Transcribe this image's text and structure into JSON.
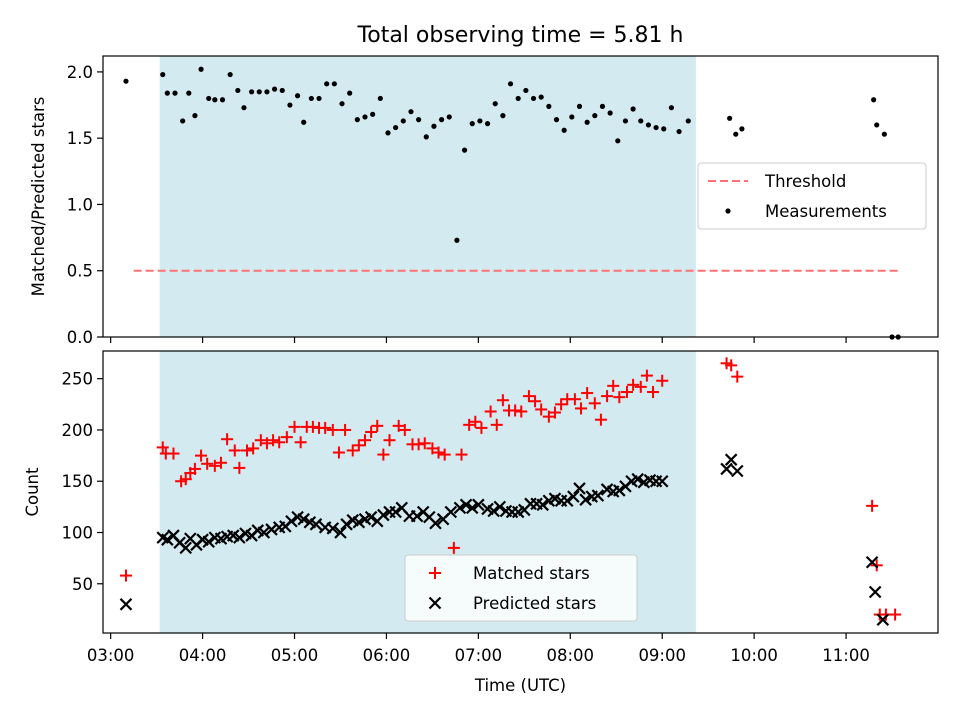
{
  "chart_data": [
    {
      "type": "scatter",
      "title": "Total observing time = 5.81 h",
      "ylabel": "Matched/Predicted stars",
      "xlabel": "",
      "ylim": [
        0,
        2.12
      ],
      "yticks": [
        0.0,
        0.5,
        1.0,
        1.5,
        2.0
      ],
      "ytick_labels": [
        "0.0",
        "0.5",
        "1.0",
        "1.5",
        "2.0"
      ],
      "observing_window": [
        "03:32",
        "09:22"
      ],
      "threshold": {
        "name": "Threshold",
        "value": 0.5,
        "x_range": [
          "03:15",
          "11:35"
        ],
        "color": "#ff7070",
        "style": "dashed"
      },
      "legend": {
        "entries": [
          "Threshold",
          "Measurements"
        ],
        "position": "center-right"
      },
      "series": [
        {
          "name": "Measurements",
          "color": "#000000",
          "points": [
            [
              "03:10",
              1.93
            ],
            [
              "03:34",
              1.98
            ],
            [
              "03:37",
              1.84
            ],
            [
              "03:42",
              1.84
            ],
            [
              "03:47",
              1.63
            ],
            [
              "03:51",
              1.84
            ],
            [
              "03:55",
              1.67
            ],
            [
              "03:59",
              2.02
            ],
            [
              "04:04",
              1.8
            ],
            [
              "04:08",
              1.79
            ],
            [
              "04:13",
              1.79
            ],
            [
              "04:18",
              1.98
            ],
            [
              "04:23",
              1.86
            ],
            [
              "04:27",
              1.73
            ],
            [
              "04:32",
              1.85
            ],
            [
              "04:37",
              1.85
            ],
            [
              "04:42",
              1.85
            ],
            [
              "04:47",
              1.87
            ],
            [
              "04:52",
              1.86
            ],
            [
              "04:57",
              1.75
            ],
            [
              "05:02",
              1.82
            ],
            [
              "05:06",
              1.62
            ],
            [
              "05:11",
              1.8
            ],
            [
              "05:16",
              1.8
            ],
            [
              "05:21",
              1.91
            ],
            [
              "05:26",
              1.91
            ],
            [
              "05:31",
              1.76
            ],
            [
              "05:36",
              1.84
            ],
            [
              "05:41",
              1.64
            ],
            [
              "05:46",
              1.66
            ],
            [
              "05:51",
              1.68
            ],
            [
              "05:56",
              1.8
            ],
            [
              "06:01",
              1.54
            ],
            [
              "06:06",
              1.58
            ],
            [
              "06:11",
              1.63
            ],
            [
              "06:16",
              1.7
            ],
            [
              "06:21",
              1.64
            ],
            [
              "06:26",
              1.51
            ],
            [
              "06:31",
              1.59
            ],
            [
              "06:36",
              1.64
            ],
            [
              "06:41",
              1.66
            ],
            [
              "06:46",
              0.73
            ],
            [
              "06:51",
              1.41
            ],
            [
              "06:56",
              1.61
            ],
            [
              "07:01",
              1.63
            ],
            [
              "07:06",
              1.61
            ],
            [
              "07:11",
              1.76
            ],
            [
              "07:16",
              1.67
            ],
            [
              "07:21",
              1.91
            ],
            [
              "07:26",
              1.8
            ],
            [
              "07:31",
              1.86
            ],
            [
              "07:36",
              1.8
            ],
            [
              "07:41",
              1.81
            ],
            [
              "07:46",
              1.74
            ],
            [
              "07:51",
              1.64
            ],
            [
              "07:56",
              1.56
            ],
            [
              "08:01",
              1.66
            ],
            [
              "08:06",
              1.74
            ],
            [
              "08:11",
              1.62
            ],
            [
              "08:16",
              1.67
            ],
            [
              "08:21",
              1.74
            ],
            [
              "08:26",
              1.69
            ],
            [
              "08:31",
              1.48
            ],
            [
              "08:36",
              1.63
            ],
            [
              "08:41",
              1.72
            ],
            [
              "08:46",
              1.63
            ],
            [
              "08:51",
              1.6
            ],
            [
              "08:56",
              1.58
            ],
            [
              "09:01",
              1.57
            ],
            [
              "09:06",
              1.73
            ],
            [
              "09:11",
              1.55
            ],
            [
              "09:17",
              1.63
            ],
            [
              "09:44",
              1.65
            ],
            [
              "09:48",
              1.53
            ],
            [
              "09:52",
              1.57
            ],
            [
              "11:18",
              1.79
            ],
            [
              "11:20",
              1.6
            ],
            [
              "11:25",
              1.53
            ],
            [
              "11:30",
              0.0
            ],
            [
              "11:34",
              0.0
            ]
          ]
        }
      ]
    },
    {
      "type": "scatter",
      "title": "",
      "ylabel": "Count",
      "xlabel": "Time (UTC)",
      "ylim": [
        2,
        277
      ],
      "yticks": [
        50,
        100,
        150,
        200,
        250
      ],
      "ytick_labels": [
        "50",
        "100",
        "150",
        "200",
        "250"
      ],
      "xlim": [
        "02:55",
        "12:00"
      ],
      "xticks": [
        "03:00",
        "04:00",
        "05:00",
        "06:00",
        "07:00",
        "08:00",
        "09:00",
        "10:00",
        "11:00"
      ],
      "observing_window": [
        "03:32",
        "09:22"
      ],
      "legend": {
        "entries": [
          "Matched stars",
          "Predicted stars"
        ],
        "position": "lower-center"
      },
      "series": [
        {
          "name": "Matched stars",
          "color": "#ff0000",
          "marker": "plus",
          "points": [
            [
              "03:10",
              58
            ],
            [
              "03:34",
              183
            ],
            [
              "03:36",
              177
            ],
            [
              "03:41",
              177
            ],
            [
              "03:46",
              150
            ],
            [
              "03:49",
              152
            ],
            [
              "03:52",
              158
            ],
            [
              "03:55",
              162
            ],
            [
              "03:59",
              175
            ],
            [
              "04:03",
              167
            ],
            [
              "04:08",
              165
            ],
            [
              "04:12",
              168
            ],
            [
              "04:16",
              191
            ],
            [
              "04:21",
              180
            ],
            [
              "04:24",
              163
            ],
            [
              "04:29",
              180
            ],
            [
              "04:33",
              182
            ],
            [
              "04:38",
              190
            ],
            [
              "04:42",
              187
            ],
            [
              "04:46",
              190
            ],
            [
              "04:50",
              188
            ],
            [
              "04:55",
              193
            ],
            [
              "05:00",
              203
            ],
            [
              "05:04",
              188
            ],
            [
              "05:08",
              203
            ],
            [
              "05:12",
              203
            ],
            [
              "05:16",
              202
            ],
            [
              "05:20",
              202
            ],
            [
              "05:25",
              200
            ],
            [
              "05:29",
              178
            ],
            [
              "05:33",
              200
            ],
            [
              "05:38",
              180
            ],
            [
              "05:42",
              185
            ],
            [
              "05:46",
              190
            ],
            [
              "05:50",
              198
            ],
            [
              "05:54",
              204
            ],
            [
              "05:58",
              176
            ],
            [
              "06:02",
              190
            ],
            [
              "06:08",
              204
            ],
            [
              "06:12",
              200
            ],
            [
              "06:17",
              186
            ],
            [
              "06:21",
              186
            ],
            [
              "06:25",
              187
            ],
            [
              "06:30",
              182
            ],
            [
              "06:34",
              178
            ],
            [
              "06:38",
              176
            ],
            [
              "06:44",
              85
            ],
            [
              "06:49",
              176
            ],
            [
              "06:54",
              205
            ],
            [
              "06:58",
              208
            ],
            [
              "07:02",
              202
            ],
            [
              "07:08",
              218
            ],
            [
              "07:12",
              205
            ],
            [
              "07:16",
              229
            ],
            [
              "07:20",
              219
            ],
            [
              "07:24",
              219
            ],
            [
              "07:28",
              218
            ],
            [
              "07:33",
              233
            ],
            [
              "07:37",
              228
            ],
            [
              "07:41",
              220
            ],
            [
              "07:46",
              213
            ],
            [
              "07:50",
              217
            ],
            [
              "07:54",
              225
            ],
            [
              "07:58",
              230
            ],
            [
              "08:03",
              230
            ],
            [
              "08:07",
              221
            ],
            [
              "08:11",
              236
            ],
            [
              "08:16",
              226
            ],
            [
              "08:20",
              210
            ],
            [
              "08:24",
              233
            ],
            [
              "08:28",
              243
            ],
            [
              "08:32",
              232
            ],
            [
              "08:37",
              237
            ],
            [
              "08:41",
              244
            ],
            [
              "08:46",
              242
            ],
            [
              "08:50",
              253
            ],
            [
              "08:54",
              237
            ],
            [
              "09:00",
              248
            ],
            [
              "09:42",
              265
            ],
            [
              "09:45",
              263
            ],
            [
              "09:49",
              252
            ],
            [
              "11:17",
              126
            ],
            [
              "11:20",
              68
            ],
            [
              "11:22",
              20
            ],
            [
              "11:26",
              20
            ],
            [
              "11:32",
              20
            ]
          ]
        },
        {
          "name": "Predicted stars",
          "color": "#000000",
          "marker": "x",
          "points": [
            [
              "03:10",
              30
            ],
            [
              "03:34",
              95
            ],
            [
              "03:37",
              93
            ],
            [
              "03:41",
              97
            ],
            [
              "03:45",
              90
            ],
            [
              "03:49",
              85
            ],
            [
              "03:52",
              94
            ],
            [
              "03:56",
              88
            ],
            [
              "04:00",
              93
            ],
            [
              "04:04",
              91
            ],
            [
              "04:08",
              95
            ],
            [
              "04:12",
              94
            ],
            [
              "04:16",
              96
            ],
            [
              "04:20",
              97
            ],
            [
              "04:24",
              95
            ],
            [
              "04:28",
              99
            ],
            [
              "04:32",
              97
            ],
            [
              "04:36",
              102
            ],
            [
              "04:40",
              100
            ],
            [
              "04:45",
              103
            ],
            [
              "04:50",
              105
            ],
            [
              "04:54",
              106
            ],
            [
              "04:58",
              111
            ],
            [
              "05:02",
              115
            ],
            [
              "05:06",
              113
            ],
            [
              "05:10",
              110
            ],
            [
              "05:14",
              108
            ],
            [
              "05:20",
              105
            ],
            [
              "05:25",
              104
            ],
            [
              "05:30",
              100
            ],
            [
              "05:34",
              108
            ],
            [
              "05:38",
              112
            ],
            [
              "05:42",
              110
            ],
            [
              "05:46",
              113
            ],
            [
              "05:50",
              115
            ],
            [
              "05:54",
              111
            ],
            [
              "05:58",
              117
            ],
            [
              "06:02",
              120
            ],
            [
              "06:06",
              120
            ],
            [
              "06:10",
              124
            ],
            [
              "06:15",
              116
            ],
            [
              "06:20",
              116
            ],
            [
              "06:24",
              120
            ],
            [
              "06:28",
              115
            ],
            [
              "06:32",
              109
            ],
            [
              "06:37",
              113
            ],
            [
              "06:42",
              120
            ],
            [
              "06:48",
              124
            ],
            [
              "06:52",
              127
            ],
            [
              "06:56",
              124
            ],
            [
              "07:00",
              127
            ],
            [
              "07:06",
              123
            ],
            [
              "07:10",
              121
            ],
            [
              "07:14",
              125
            ],
            [
              "07:18",
              121
            ],
            [
              "07:22",
              120
            ],
            [
              "07:26",
              120
            ],
            [
              "07:30",
              122
            ],
            [
              "07:34",
              128
            ],
            [
              "07:38",
              128
            ],
            [
              "07:42",
              127
            ],
            [
              "07:46",
              131
            ],
            [
              "07:50",
              133
            ],
            [
              "07:54",
              131
            ],
            [
              "07:58",
              131
            ],
            [
              "08:02",
              135
            ],
            [
              "08:06",
              143
            ],
            [
              "08:10",
              132
            ],
            [
              "08:14",
              135
            ],
            [
              "08:18",
              136
            ],
            [
              "08:24",
              142
            ],
            [
              "08:28",
              140
            ],
            [
              "08:32",
              141
            ],
            [
              "08:36",
              145
            ],
            [
              "08:40",
              150
            ],
            [
              "08:44",
              152
            ],
            [
              "08:48",
              149
            ],
            [
              "08:52",
              151
            ],
            [
              "08:56",
              150
            ],
            [
              "09:00",
              150
            ],
            [
              "09:42",
              162
            ],
            [
              "09:45",
              171
            ],
            [
              "09:49",
              160
            ],
            [
              "11:17",
              71
            ],
            [
              "11:19",
              42
            ],
            [
              "11:24",
              15
            ]
          ]
        }
      ]
    }
  ]
}
